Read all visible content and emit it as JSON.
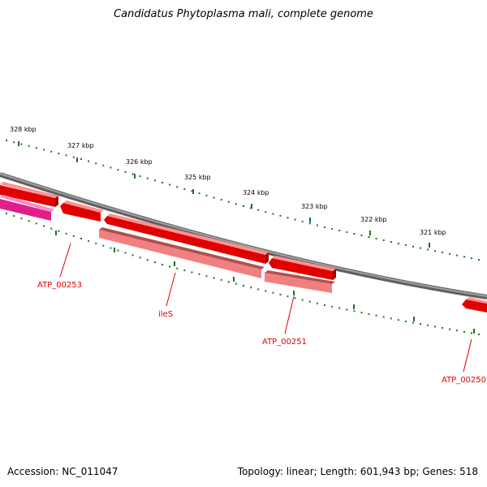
{
  "title": "Candidatus Phytoplasma mali, complete genome",
  "footer": {
    "accession": "Accession: NC_011047",
    "summary": "Topology: linear; Length: 601,943 bp; Genes: 518"
  },
  "scale_labels": [
    "328 kbp",
    "327 kbp",
    "326 kbp",
    "325 kbp",
    "324 kbp",
    "323 kbp",
    "322 kbp",
    "321 kbp"
  ],
  "gene_labels": [
    "ATP_00253",
    "ileS",
    "ATP_00251",
    "ATP_00250"
  ],
  "colors": {
    "backbone": "#808080",
    "gene_red": "#e00000",
    "gene_light": "#f08080",
    "gene_pink": "#e0208a",
    "tick_green": "#207020"
  }
}
